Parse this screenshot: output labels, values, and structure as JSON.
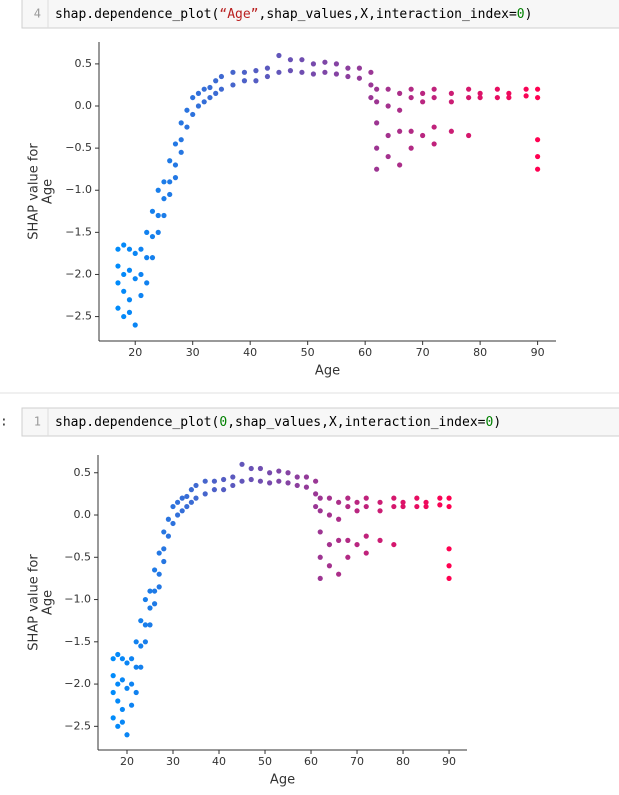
{
  "cells": [
    {
      "prompt": null,
      "line_number": "4",
      "code": [
        {
          "text": "shap.dependence_plot(",
          "color": "#000000"
        },
        {
          "text": "“Age”",
          "color": "#ba2121"
        },
        {
          "text": ",shap_values,X,interaction_index=",
          "color": "#000000"
        },
        {
          "text": "0",
          "color": "#008000"
        },
        {
          "text": ")",
          "color": "#000000"
        }
      ]
    },
    {
      "prompt": ":",
      "line_number": "1",
      "code": [
        {
          "text": "shap.dependence_plot(",
          "color": "#000000"
        },
        {
          "text": "0",
          "color": "#008000"
        },
        {
          "text": ",shap_values,X,interaction_index=",
          "color": "#000000"
        },
        {
          "text": "0",
          "color": "#008000"
        },
        {
          "text": ")",
          "color": "#000000"
        }
      ]
    }
  ],
  "chart_data": [
    {
      "type": "scatter",
      "xlabel": "Age",
      "ylabel": [
        "SHAP value for",
        "Age"
      ],
      "colormap": [
        "#008bfb",
        "#ff0051"
      ],
      "xlim": [
        13.7,
        93.2
      ],
      "ylim": [
        -2.79,
        0.76
      ],
      "xticks": [
        20,
        30,
        40,
        50,
        60,
        70,
        80,
        90
      ],
      "yticks": [
        0.5,
        {
          "value": 0,
          "label": "0.0"
        },
        {
          "value": -0.5,
          "label": "−0.5"
        },
        {
          "value": -1,
          "label": "−1.0"
        },
        {
          "value": -1.5,
          "label": "−1.5"
        },
        {
          "value": -2,
          "label": "−2.0"
        },
        {
          "value": -2.5,
          "label": "−2.5"
        }
      ],
      "x": [
        17,
        17,
        17,
        17,
        18,
        18,
        18,
        18,
        19,
        19,
        19,
        19,
        20,
        20,
        20,
        21,
        21,
        21,
        22,
        22,
        22,
        23,
        23,
        23,
        24,
        24,
        24,
        25,
        25,
        25,
        26,
        26,
        26,
        27,
        27,
        27,
        28,
        28,
        28,
        29,
        29,
        30,
        30,
        31,
        31,
        32,
        32,
        33,
        33,
        34,
        34,
        35,
        35,
        37,
        37,
        39,
        39,
        41,
        41,
        43,
        43,
        45,
        45,
        47,
        47,
        49,
        49,
        51,
        51,
        53,
        53,
        55,
        55,
        57,
        57,
        59,
        59,
        61,
        61,
        61,
        62,
        62,
        62,
        62,
        62,
        64,
        64,
        64,
        64,
        66,
        66,
        66,
        66,
        68,
        68,
        68,
        68,
        70,
        70,
        70,
        72,
        72,
        72,
        72,
        75,
        75,
        75,
        78,
        78,
        78,
        80,
        80,
        83,
        83,
        85,
        85,
        88,
        88,
        90,
        90,
        90,
        90,
        90
      ],
      "values": [
        -1.7,
        -1.9,
        -2.1,
        -2.4,
        -1.65,
        -2.0,
        -2.2,
        -2.5,
        -1.7,
        -1.95,
        -2.3,
        -2.45,
        -1.75,
        -2.05,
        -2.6,
        -1.7,
        -2.0,
        -2.25,
        -1.5,
        -1.8,
        -2.1,
        -1.25,
        -1.55,
        -1.8,
        -1.0,
        -1.3,
        -1.5,
        -0.9,
        -1.1,
        -1.3,
        -0.65,
        -0.9,
        -1.05,
        -0.45,
        -0.7,
        -0.85,
        -0.2,
        -0.4,
        -0.55,
        -0.05,
        -0.25,
        0.1,
        -0.1,
        0.15,
        0.0,
        0.2,
        0.05,
        0.22,
        0.1,
        0.3,
        0.15,
        0.35,
        0.2,
        0.4,
        0.25,
        0.4,
        0.3,
        0.42,
        0.3,
        0.45,
        0.35,
        0.6,
        0.4,
        0.55,
        0.42,
        0.55,
        0.4,
        0.5,
        0.38,
        0.52,
        0.4,
        0.5,
        0.38,
        0.45,
        0.35,
        0.45,
        0.33,
        0.4,
        0.25,
        0.1,
        0.2,
        0.05,
        -0.2,
        -0.5,
        -0.75,
        0.2,
        0.0,
        -0.35,
        -0.6,
        0.15,
        -0.05,
        -0.3,
        -0.7,
        0.2,
        0.1,
        -0.3,
        -0.5,
        0.15,
        0.05,
        -0.35,
        0.2,
        0.1,
        -0.25,
        -0.45,
        0.15,
        0.05,
        -0.3,
        0.2,
        0.1,
        -0.35,
        0.15,
        0.1,
        0.2,
        0.1,
        0.15,
        0.1,
        0.2,
        0.12,
        0.2,
        0.1,
        -0.4,
        -0.6,
        -0.75
      ]
    },
    {
      "type": "scatter",
      "xlabel": "Age",
      "ylabel": [
        "SHAP value for",
        "Age"
      ],
      "colormap": [
        "#008bfb",
        "#ff0051"
      ],
      "xlim": [
        13.7,
        93.9
      ],
      "ylim": [
        -2.78,
        0.71
      ],
      "xticks": [
        20,
        30,
        40,
        50,
        60,
        70,
        80,
        90
      ],
      "yticks": [
        0.5,
        {
          "value": 0,
          "label": "0.0"
        },
        {
          "value": -0.5,
          "label": "−0.5"
        },
        {
          "value": -1,
          "label": "−1.0"
        },
        {
          "value": -1.5,
          "label": "−1.5"
        },
        {
          "value": -2,
          "label": "−2.0"
        },
        {
          "value": -2.5,
          "label": "−2.5"
        }
      ],
      "x": [
        17,
        17,
        17,
        17,
        18,
        18,
        18,
        18,
        19,
        19,
        19,
        19,
        20,
        20,
        20,
        21,
        21,
        21,
        22,
        22,
        22,
        23,
        23,
        23,
        24,
        24,
        24,
        25,
        25,
        25,
        26,
        26,
        26,
        27,
        27,
        27,
        28,
        28,
        28,
        29,
        29,
        30,
        30,
        31,
        31,
        32,
        32,
        33,
        33,
        34,
        34,
        35,
        35,
        37,
        37,
        39,
        39,
        41,
        41,
        43,
        43,
        45,
        45,
        47,
        47,
        49,
        49,
        51,
        51,
        53,
        53,
        55,
        55,
        57,
        57,
        59,
        59,
        61,
        61,
        61,
        62,
        62,
        62,
        62,
        62,
        64,
        64,
        64,
        64,
        66,
        66,
        66,
        66,
        68,
        68,
        68,
        68,
        70,
        70,
        70,
        72,
        72,
        72,
        72,
        75,
        75,
        75,
        78,
        78,
        78,
        80,
        80,
        83,
        83,
        85,
        85,
        88,
        88,
        90,
        90,
        90,
        90,
        90
      ],
      "values": [
        -1.7,
        -1.9,
        -2.1,
        -2.4,
        -1.65,
        -2.0,
        -2.2,
        -2.5,
        -1.7,
        -1.95,
        -2.3,
        -2.45,
        -1.75,
        -2.05,
        -2.6,
        -1.7,
        -2.0,
        -2.25,
        -1.5,
        -1.8,
        -2.1,
        -1.25,
        -1.55,
        -1.8,
        -1.0,
        -1.3,
        -1.5,
        -0.9,
        -1.1,
        -1.3,
        -0.65,
        -0.9,
        -1.05,
        -0.45,
        -0.7,
        -0.85,
        -0.2,
        -0.4,
        -0.55,
        -0.05,
        -0.25,
        0.1,
        -0.1,
        0.15,
        0.0,
        0.2,
        0.05,
        0.22,
        0.1,
        0.3,
        0.15,
        0.35,
        0.2,
        0.4,
        0.25,
        0.4,
        0.3,
        0.42,
        0.3,
        0.45,
        0.35,
        0.6,
        0.4,
        0.55,
        0.42,
        0.55,
        0.4,
        0.5,
        0.38,
        0.52,
        0.4,
        0.5,
        0.38,
        0.45,
        0.35,
        0.45,
        0.33,
        0.4,
        0.25,
        0.1,
        0.2,
        0.05,
        -0.2,
        -0.5,
        -0.75,
        0.2,
        0.0,
        -0.35,
        -0.6,
        0.15,
        -0.05,
        -0.3,
        -0.7,
        0.2,
        0.1,
        -0.3,
        -0.5,
        0.15,
        0.05,
        -0.35,
        0.2,
        0.1,
        -0.25,
        -0.45,
        0.15,
        0.05,
        -0.3,
        0.2,
        0.1,
        -0.35,
        0.15,
        0.1,
        0.2,
        0.1,
        0.15,
        0.1,
        0.2,
        0.12,
        0.2,
        0.1,
        -0.4,
        -0.6,
        -0.75
      ]
    }
  ]
}
